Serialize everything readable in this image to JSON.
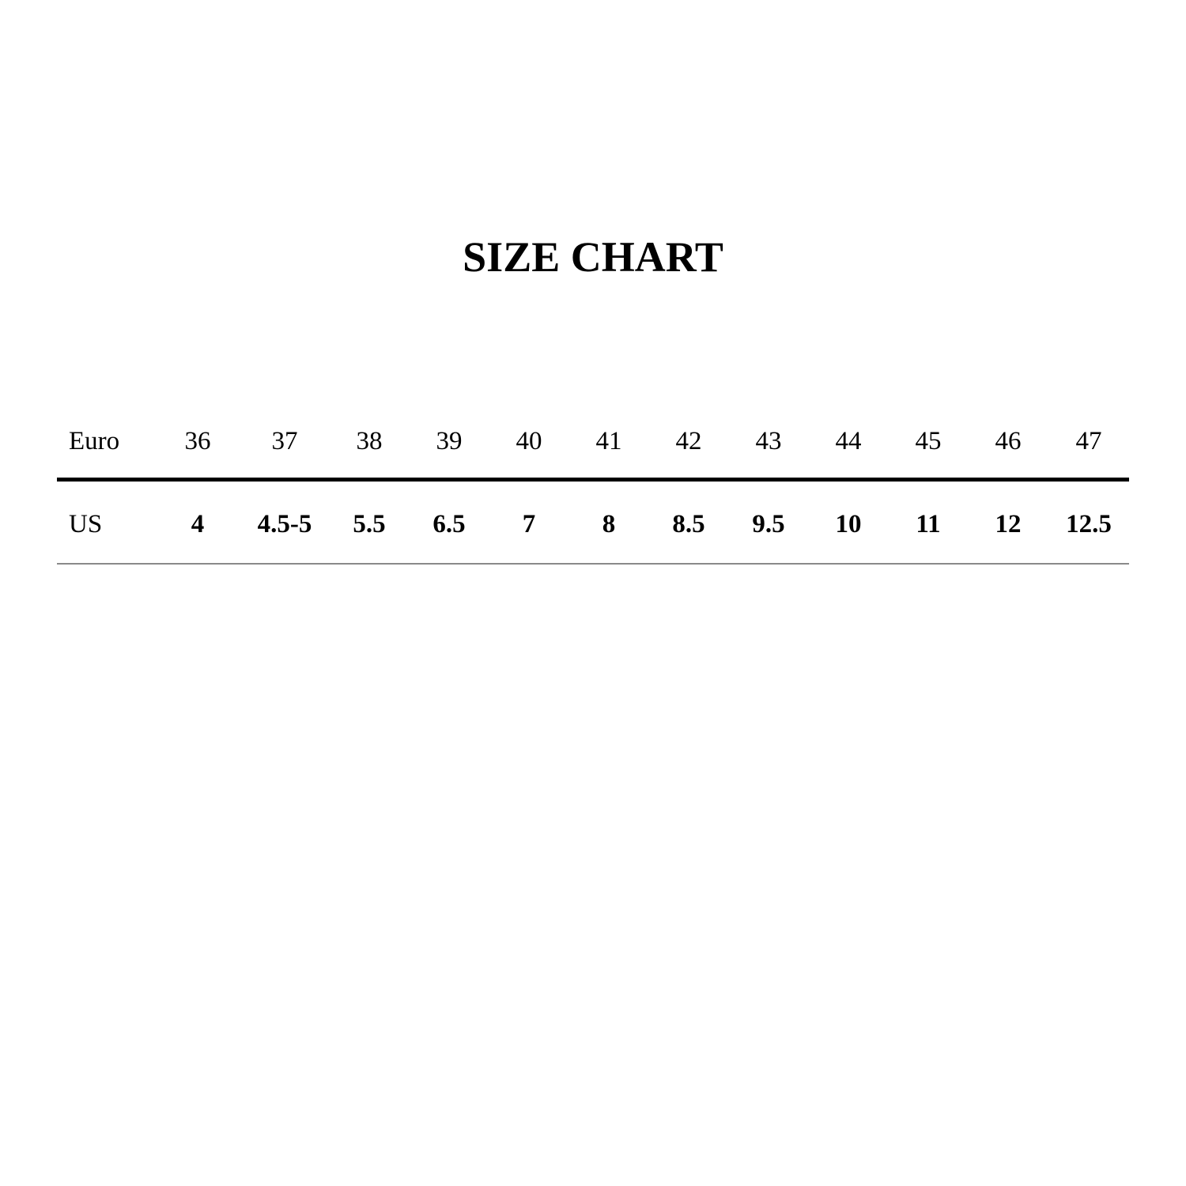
{
  "title": "SIZE CHART",
  "table": {
    "rows": [
      {
        "label": "Euro",
        "values": [
          "36",
          "37",
          "38",
          "39",
          "40",
          "41",
          "42",
          "43",
          "44",
          "45",
          "46",
          "47"
        ]
      },
      {
        "label": "US",
        "values": [
          "4",
          "4.5-5",
          "5.5",
          "6.5",
          "7",
          "8",
          "8.5",
          "9.5",
          "10",
          "11",
          "12",
          "12.5"
        ]
      }
    ]
  }
}
